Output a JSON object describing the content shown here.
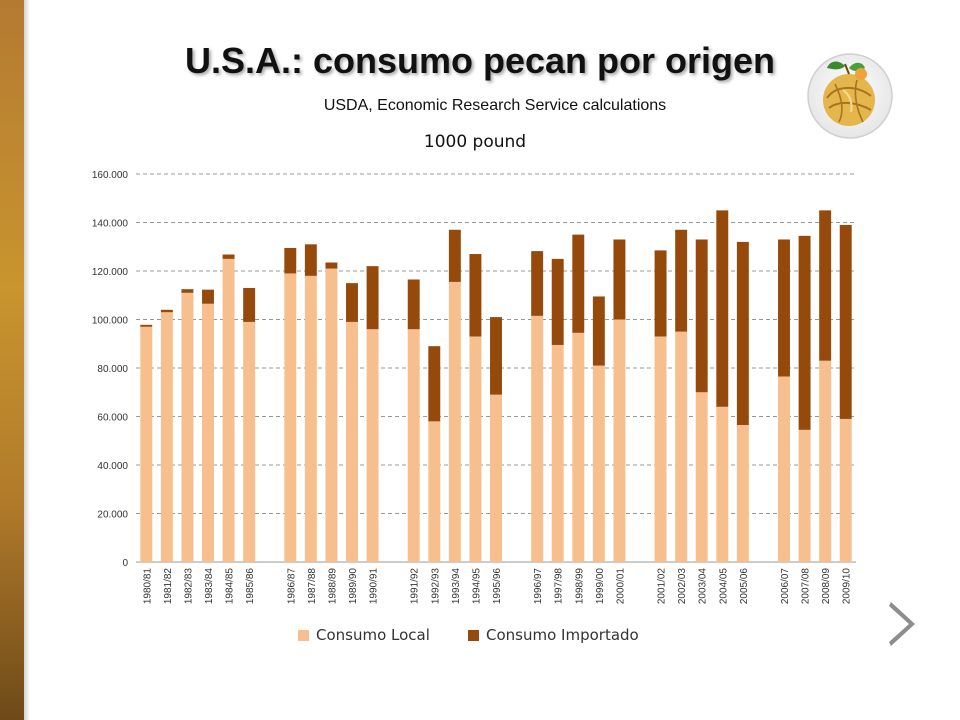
{
  "header": {
    "title": "U.S.A.: consumo pecan por origen",
    "subtitle": "USDA, Economic Research Service calculations",
    "unit": "1000 pound"
  },
  "logo_icon": "pecan-globe-logo-icon",
  "navigation": {
    "next_icon": "chevron-right-icon"
  },
  "colors": {
    "local": "#f8bf8e",
    "imported": "#954a0b",
    "grid": "#999999",
    "text": "#333333"
  },
  "chart_data": {
    "type": "bar",
    "stacked": true,
    "categories": [
      "1980/81",
      "1981/82",
      "1982/83",
      "1983/84",
      "1984/85",
      "1985/86",
      "",
      "1986/87",
      "1987/88",
      "1988/89",
      "1989/90",
      "1990/91",
      "",
      "1991/92",
      "1992/93",
      "1993/94",
      "1994/95",
      "1995/96",
      "",
      "1996/97",
      "1997/98",
      "1998/99",
      "1999/00",
      "2000/01",
      "",
      "2001/02",
      "2002/03",
      "2003/04",
      "2004/05",
      "2005/06",
      "",
      "2006/07",
      "2007/08",
      "2008/09",
      "2009/10"
    ],
    "series": [
      {
        "name": "Consumo Local",
        "values": [
          97000,
          103000,
          111000,
          106500,
          125000,
          99000,
          null,
          119000,
          118000,
          121000,
          99000,
          96000,
          null,
          96000,
          58000,
          115500,
          93000,
          69000,
          null,
          101500,
          89500,
          94500,
          81000,
          100000,
          null,
          93000,
          95000,
          70000,
          64000,
          56500,
          null,
          76500,
          54500,
          83000,
          59000
        ]
      },
      {
        "name": "Consumo Importado",
        "values": [
          800,
          1000,
          1500,
          5800,
          1800,
          14000,
          null,
          10500,
          13000,
          2500,
          16000,
          26000,
          null,
          20500,
          31000,
          21500,
          34000,
          32000,
          null,
          26700,
          35500,
          40500,
          28500,
          33000,
          null,
          35500,
          42000,
          63000,
          81000,
          75500,
          null,
          56500,
          80000,
          62000,
          80000
        ]
      }
    ],
    "yticks": [
      "0",
      "20.000",
      "40.000",
      "60.000",
      "80.000",
      "100.000",
      "120.000",
      "140.000",
      "160.000"
    ],
    "ylim": [
      0,
      160000
    ],
    "grid": true,
    "legend_position": "bottom"
  }
}
